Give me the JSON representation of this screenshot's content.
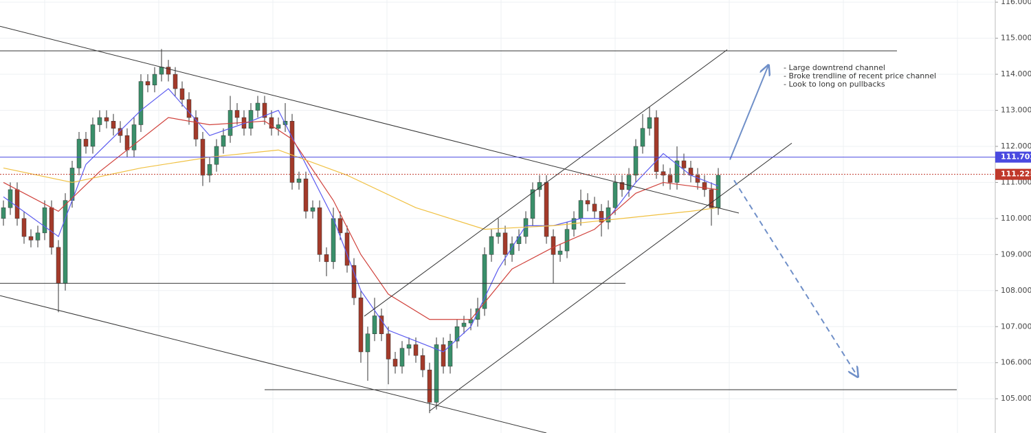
{
  "chart_data": {
    "type": "candlestick",
    "up_color": "#3a8f6a",
    "down_color": "#a33a2a",
    "ylim": [
      104.05,
      116.06
    ],
    "yticks": [
      {
        "value": 105,
        "label": "105.000"
      },
      {
        "value": 106,
        "label": "106.000"
      },
      {
        "value": 107,
        "label": "107.000"
      },
      {
        "value": 108,
        "label": "108.000"
      },
      {
        "value": 109,
        "label": "109.000"
      },
      {
        "value": 110,
        "label": "110.000"
      },
      {
        "value": 111,
        "label": "111.000"
      },
      {
        "value": 112,
        "label": "112.000"
      },
      {
        "value": 113,
        "label": "113.000"
      },
      {
        "value": 114,
        "label": "114.000"
      },
      {
        "value": 115,
        "label": "115.000"
      },
      {
        "value": 116,
        "label": "116.000"
      }
    ],
    "grid": true,
    "open": [
      110.0,
      110.3,
      110.8,
      110.0,
      109.5,
      109.4,
      109.6,
      110.3,
      109.2,
      108.2,
      110.5,
      111.4,
      112.2,
      112.0,
      112.6,
      112.8,
      112.7,
      112.5,
      112.3,
      111.9,
      112.6,
      113.8,
      113.7,
      114.0,
      114.2,
      114.0,
      113.6,
      113.3,
      112.8,
      112.2,
      111.2,
      111.5,
      112.0,
      112.3,
      113.0,
      112.8,
      112.5,
      113.0,
      113.2,
      112.8,
      112.5,
      112.6,
      112.7,
      111.0,
      111.1,
      110.2,
      110.3,
      109.0,
      108.8,
      110.0,
      109.6,
      108.7,
      107.8,
      106.3,
      106.8,
      107.3,
      106.8,
      106.1,
      105.9,
      106.4,
      106.5,
      106.2,
      105.8,
      104.9,
      106.5,
      105.9,
      106.6,
      107.0,
      107.1,
      107.2,
      107.5,
      109.0,
      109.5,
      109.6,
      109.0,
      109.3,
      109.5,
      110.0,
      110.8,
      111.0,
      109.5,
      109.0,
      109.1,
      109.7,
      110.0,
      110.5,
      110.4,
      110.2,
      109.9,
      110.3,
      111.0,
      110.8,
      111.2,
      112.0,
      112.5,
      112.8,
      111.3,
      111.2,
      111.0,
      111.6,
      111.4,
      111.2,
      111.0,
      110.8,
      110.3
    ],
    "high": [
      110.5,
      111.0,
      111.0,
      110.2,
      109.7,
      109.8,
      110.5,
      110.5,
      109.4,
      110.7,
      111.6,
      112.4,
      112.4,
      112.8,
      113.0,
      113.0,
      112.9,
      112.7,
      112.5,
      112.8,
      114.0,
      114.0,
      114.2,
      114.7,
      114.4,
      114.2,
      113.8,
      113.5,
      113.0,
      112.4,
      111.7,
      112.2,
      112.5,
      113.4,
      113.2,
      113.0,
      113.2,
      113.4,
      113.4,
      113.0,
      112.8,
      113.2,
      112.9,
      111.3,
      111.3,
      110.5,
      110.5,
      109.2,
      110.3,
      110.2,
      109.8,
      108.9,
      108.0,
      107.0,
      107.8,
      107.5,
      107.0,
      106.3,
      106.6,
      106.7,
      106.7,
      106.4,
      106.0,
      106.7,
      106.7,
      106.8,
      107.2,
      107.3,
      107.5,
      107.8,
      109.2,
      109.7,
      110.0,
      109.8,
      109.5,
      109.7,
      110.2,
      111.0,
      111.2,
      111.2,
      109.7,
      109.3,
      109.9,
      110.2,
      110.8,
      110.7,
      110.6,
      110.4,
      110.5,
      111.2,
      111.2,
      111.4,
      112.2,
      112.9,
      113.1,
      113.0,
      111.5,
      111.4,
      112.0,
      111.8,
      111.6,
      111.4,
      111.2,
      111.0,
      111.4
    ],
    "low": [
      109.8,
      110.1,
      109.8,
      109.3,
      109.2,
      109.2,
      109.4,
      109.0,
      107.4,
      108.0,
      110.3,
      111.2,
      111.8,
      111.8,
      112.4,
      112.5,
      112.3,
      112.1,
      111.7,
      111.7,
      112.4,
      113.5,
      113.5,
      113.8,
      113.8,
      113.4,
      113.1,
      112.6,
      112.0,
      110.9,
      111.0,
      111.3,
      111.8,
      112.1,
      112.6,
      112.3,
      112.3,
      112.8,
      112.6,
      112.3,
      112.3,
      112.4,
      110.8,
      110.8,
      110.0,
      110.0,
      108.8,
      108.4,
      108.6,
      109.4,
      108.5,
      107.6,
      106.0,
      105.5,
      106.6,
      106.6,
      105.4,
      105.7,
      105.7,
      106.2,
      106.0,
      105.6,
      104.6,
      104.7,
      105.7,
      105.7,
      106.4,
      106.8,
      106.9,
      107.0,
      107.3,
      108.8,
      109.3,
      108.7,
      108.8,
      109.1,
      109.3,
      109.8,
      110.6,
      109.3,
      108.2,
      108.8,
      108.9,
      109.5,
      109.8,
      110.2,
      110.0,
      109.5,
      109.7,
      110.1,
      110.6,
      110.6,
      111.0,
      111.8,
      112.3,
      111.1,
      110.9,
      110.8,
      110.8,
      111.2,
      111.0,
      110.8,
      110.6,
      109.8,
      110.1
    ],
    "close": [
      110.3,
      110.8,
      110.0,
      109.5,
      109.4,
      109.6,
      110.3,
      109.2,
      108.2,
      110.5,
      111.4,
      112.2,
      112.0,
      112.6,
      112.8,
      112.7,
      112.5,
      112.3,
      111.9,
      112.6,
      113.8,
      113.7,
      114.0,
      114.2,
      114.0,
      113.6,
      113.3,
      112.8,
      112.2,
      111.2,
      111.5,
      112.0,
      112.3,
      113.0,
      112.8,
      112.5,
      113.0,
      113.2,
      112.8,
      112.5,
      112.6,
      112.7,
      111.0,
      111.1,
      110.2,
      110.3,
      109.0,
      108.8,
      110.0,
      109.6,
      108.7,
      107.8,
      106.3,
      106.8,
      107.3,
      106.8,
      106.1,
      105.9,
      106.4,
      106.5,
      106.2,
      105.8,
      104.9,
      106.5,
      105.9,
      106.6,
      107.0,
      107.1,
      107.2,
      107.5,
      109.0,
      109.5,
      109.6,
      109.0,
      109.3,
      109.5,
      110.0,
      110.8,
      111.0,
      109.5,
      109.0,
      109.1,
      109.7,
      110.0,
      110.5,
      110.4,
      110.2,
      109.9,
      110.3,
      111.0,
      110.8,
      111.2,
      112.0,
      112.5,
      112.8,
      111.3,
      111.2,
      111.0,
      111.6,
      111.4,
      111.2,
      111.0,
      110.8,
      110.3,
      111.2
    ],
    "series": [
      {
        "color": "#5b5bf0",
        "x": [
          0,
          8,
          12,
          20,
          24,
          30,
          36,
          40,
          44,
          48,
          52,
          56,
          60,
          64,
          68,
          72,
          76,
          80,
          84,
          88,
          92,
          96,
          100,
          104
        ],
        "values": [
          110.6,
          109.5,
          111.5,
          113.0,
          113.6,
          112.3,
          112.7,
          113.0,
          111.5,
          110.0,
          108.0,
          106.9,
          106.6,
          106.3,
          107.0,
          108.6,
          109.8,
          109.8,
          110.0,
          110.0,
          111.0,
          111.8,
          111.2,
          110.9
        ]
      },
      {
        "color": "#d0403a",
        "x": [
          0,
          8,
          14,
          24,
          30,
          38,
          42,
          48,
          52,
          56,
          62,
          68,
          74,
          80,
          86,
          92,
          96,
          100,
          104
        ],
        "values": [
          111.0,
          110.2,
          111.3,
          112.8,
          112.6,
          112.7,
          112.2,
          110.5,
          109.0,
          107.9,
          107.2,
          107.2,
          108.6,
          109.2,
          109.7,
          110.7,
          111.0,
          110.9,
          110.8
        ]
      },
      {
        "color": "#f0c040",
        "x": [
          0,
          10,
          20,
          30,
          40,
          50,
          60,
          70,
          80,
          90,
          100,
          104
        ],
        "values": [
          111.4,
          111.0,
          111.4,
          111.7,
          111.9,
          111.2,
          110.3,
          109.7,
          109.8,
          110.0,
          110.2,
          110.3
        ]
      }
    ],
    "trendlines": [
      [
        -0.5,
        115.33,
        107,
        110.15
      ],
      [
        -0.5,
        107.86,
        79,
        104.05
      ],
      [
        52.5,
        107.29,
        105.3,
        114.68
      ],
      [
        62,
        104.66,
        114.7,
        112.09
      ],
      [
        -0.5,
        114.65,
        130,
        114.65
      ],
      [
        -0.5,
        108.2,
        90.5,
        108.2
      ],
      [
        38,
        105.25,
        138.7,
        105.25
      ]
    ],
    "arrows": [
      {
        "points": [
          105.7,
          111.63,
          111.3,
          114.25
        ],
        "dashed": false
      },
      {
        "points": [
          106.3,
          111.06,
          124.3,
          105.61
        ],
        "dashed": true
      }
    ],
    "price_lines": [
      {
        "value": 111.702,
        "label": "111.702",
        "color": "#4a4ae0",
        "dashed": false
      },
      {
        "value": 111.225,
        "label": "111.225",
        "color": "#c0392b",
        "dashed": true
      }
    ],
    "annotation": [
      "- Large downtrend channel",
      "- Broke trendline of recent price channel",
      "- Look to long on pullbacks"
    ]
  }
}
